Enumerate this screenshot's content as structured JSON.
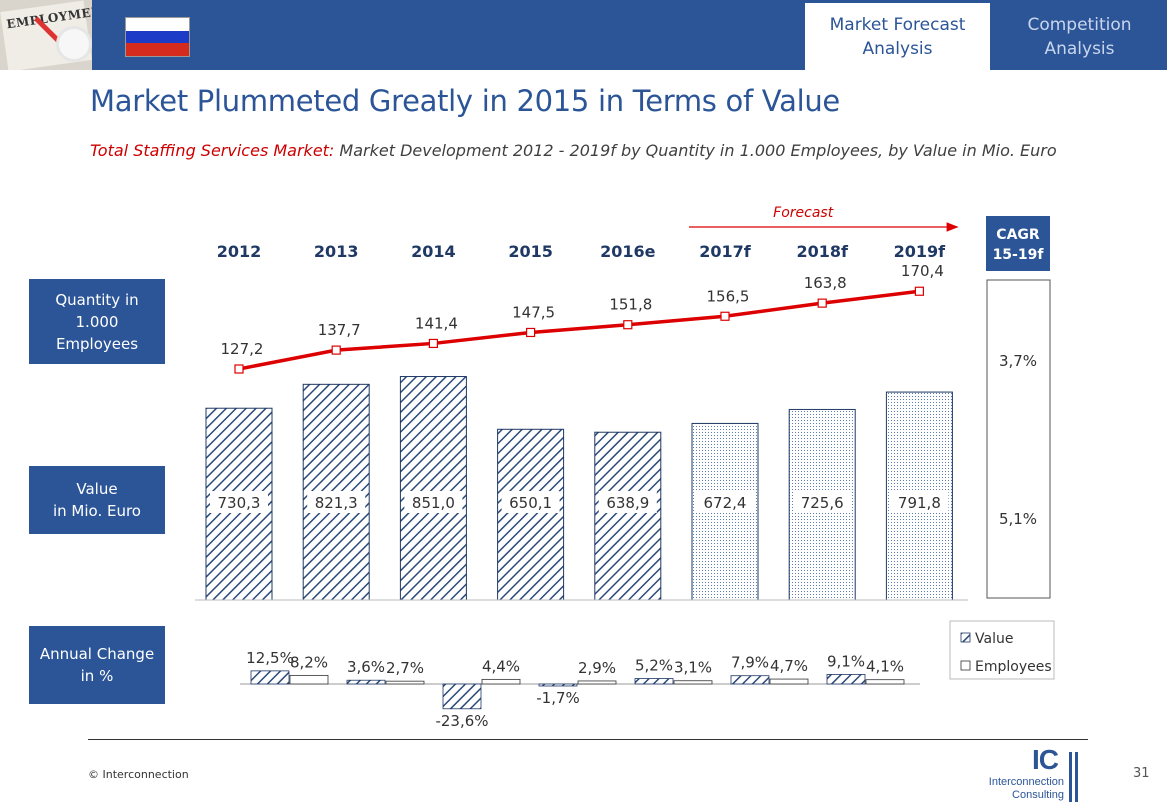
{
  "header": {
    "thumbnail_text": "EMPLOYMENT",
    "tabs": [
      {
        "label": "Market Forecast\nAnalysis",
        "active": true
      },
      {
        "label": "Competition\nAnalysis",
        "active": false
      }
    ],
    "flag_colors": [
      "#ffffff",
      "#1c3cc8",
      "#d52b1e"
    ]
  },
  "title": "Market Plummeted Greatly in 2015 in Terms of Value",
  "subtitle": {
    "highlight": "Total Staffing Services Market:",
    "rest": " Market Development 2012 - 2019f  by Quantity in 1.000 Employees, by Value in Mio. Euro"
  },
  "side_labels": {
    "quantity": "Quantity in\n1.000\nEmployees",
    "value": "Value\nin Mio. Euro",
    "change": "Annual Change\nin %"
  },
  "colors": {
    "brand": "#2b5597",
    "accent_red": "#dd0000",
    "bar_pattern": "#2b4a7a"
  },
  "chart_data": {
    "type": "bar",
    "categories": [
      "2012",
      "2013",
      "2014",
      "2015",
      "2016e",
      "2017f",
      "2018f",
      "2019f"
    ],
    "forecast_label": "Forecast",
    "forecast_start_index": 5,
    "series": [
      {
        "name": "Value",
        "unit": "Mio. Euro",
        "chart": "bar",
        "values": [
          730.3,
          821.3,
          851.0,
          650.1,
          638.9,
          672.4,
          725.6,
          791.8
        ],
        "labels": [
          "730,3",
          "821,3",
          "851,0",
          "650,1",
          "638,9",
          "672,4",
          "725,6",
          "791,8"
        ]
      },
      {
        "name": "Employees",
        "unit": "1.000 Employees",
        "chart": "line",
        "values": [
          127.2,
          137.7,
          141.4,
          147.5,
          151.8,
          156.5,
          163.8,
          170.4
        ],
        "labels": [
          "127,2",
          "137,7",
          "141,4",
          "147,5",
          "151,8",
          "156,5",
          "163,8",
          "170,4"
        ]
      }
    ],
    "annual_change": {
      "legend": [
        "Value",
        "Employees"
      ],
      "value": [
        12.5,
        3.6,
        -23.6,
        -1.7,
        5.2,
        7.9,
        9.1
      ],
      "employees": [
        8.2,
        2.7,
        4.4,
        2.9,
        3.1,
        4.7,
        4.1
      ],
      "value_labels": [
        "12,5%",
        "3,6%",
        "-23,6%",
        "-1,7%",
        "5,2%",
        "7,9%",
        "9,1%"
      ],
      "employees_labels": [
        "8,2%",
        "2,7%",
        "4,4%",
        "2,9%",
        "3,1%",
        "4,7%",
        "4,1%"
      ]
    },
    "cagr": {
      "title": "CAGR\n15-19f",
      "employees": "3,7%",
      "value": "5,1%"
    }
  },
  "footer": {
    "copyright": "© Interconnection",
    "page": "31",
    "logo_mark": "IC",
    "logo_line1": "Interconnection",
    "logo_line2": "Consulting"
  }
}
